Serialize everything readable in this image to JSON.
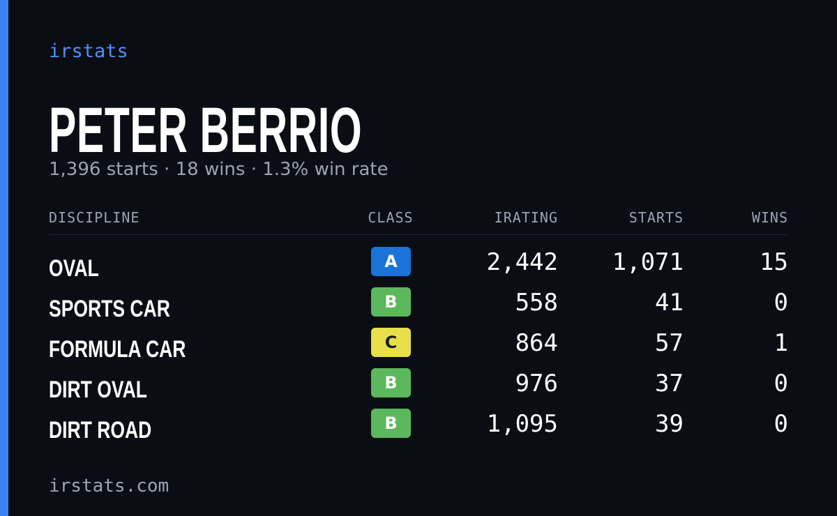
{
  "brand": "irstats",
  "driver": {
    "name": "PETER BERRIO",
    "summary": "1,396 starts · 18 wins · 1.3% win rate"
  },
  "table": {
    "headers": [
      "DISCIPLINE",
      "CLASS",
      "IRATING",
      "STARTS",
      "WINS"
    ],
    "rows": [
      {
        "discipline": "OVAL",
        "class": "A",
        "class_color": "#1a73d9",
        "irating": "2,442",
        "starts": "1,071",
        "wins": "15"
      },
      {
        "discipline": "SPORTS CAR",
        "class": "B",
        "class_color": "#5cb85c",
        "irating": "558",
        "starts": "41",
        "wins": "0"
      },
      {
        "discipline": "FORMULA CAR",
        "class": "C",
        "class_color": "#e8df4a",
        "irating": "864",
        "starts": "57",
        "wins": "1"
      },
      {
        "discipline": "DIRT OVAL",
        "class": "B",
        "class_color": "#5cb85c",
        "irating": "976",
        "starts": "37",
        "wins": "0"
      },
      {
        "discipline": "DIRT ROAD",
        "class": "B",
        "class_color": "#5cb85c",
        "irating": "1,095",
        "starts": "39",
        "wins": "0"
      }
    ]
  },
  "footer": "irstats.com"
}
